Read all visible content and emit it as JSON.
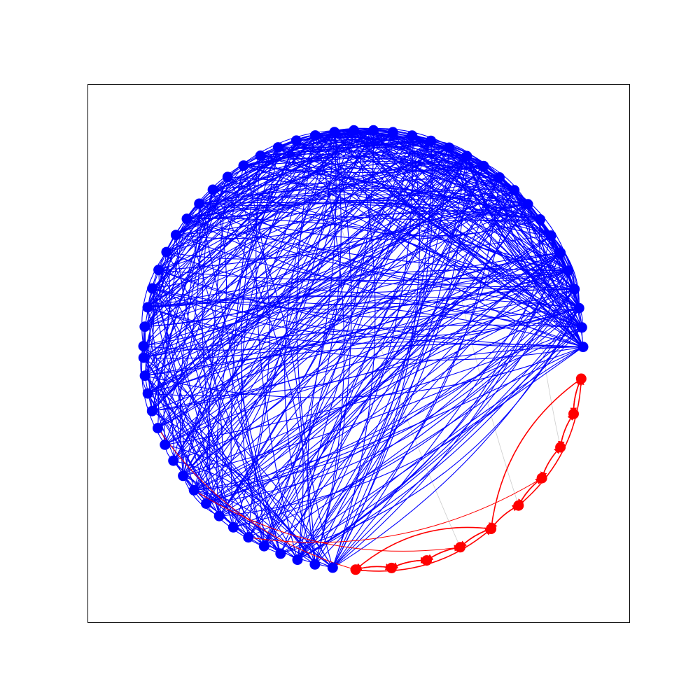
{
  "figure": {
    "type": "directed-graph",
    "layout": "circular",
    "axes_frame": true,
    "ticks": false
  },
  "colors": {
    "group_a": "#0000ff",
    "group_b": "#ff0000",
    "background": "#ffffff",
    "frame": "#000000"
  },
  "graph": {
    "group_a_node_count": 36,
    "group_b_node_count": 10,
    "group_a_edge_count": 520,
    "group_b_edges": [
      [
        0,
        1
      ],
      [
        1,
        0
      ],
      [
        1,
        2
      ],
      [
        2,
        1
      ],
      [
        2,
        3
      ],
      [
        3,
        2
      ],
      [
        3,
        4
      ],
      [
        4,
        3
      ],
      [
        4,
        5
      ],
      [
        5,
        4
      ],
      [
        5,
        6
      ],
      [
        6,
        5
      ],
      [
        6,
        7
      ],
      [
        7,
        6
      ],
      [
        7,
        8
      ],
      [
        8,
        7
      ],
      [
        8,
        9
      ],
      [
        9,
        8
      ],
      [
        0,
        5
      ],
      [
        5,
        9
      ],
      [
        9,
        5
      ],
      [
        4,
        0
      ]
    ],
    "cross_edges_to_group_b": 3,
    "faint_links": 3,
    "seed": 7
  }
}
